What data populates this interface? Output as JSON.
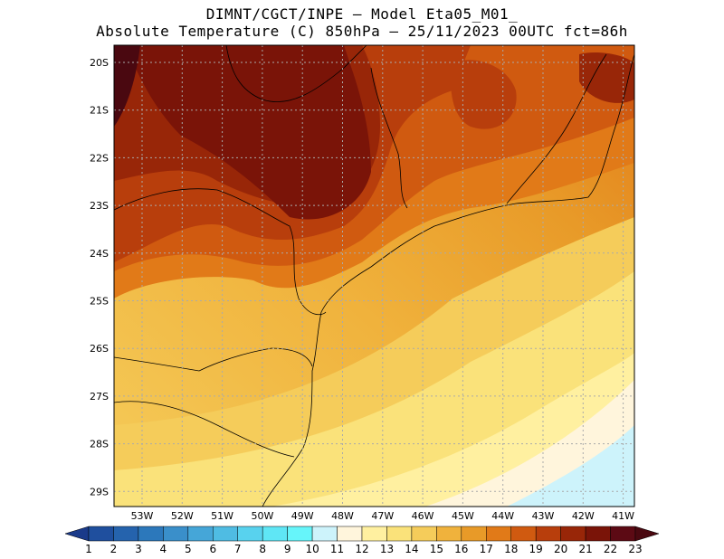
{
  "title_line1": "DIMNT/CGCT/INPE –  Model Eta05_M01_",
  "title_line2": "Absolute Temperature (C) 850hPa –  25/11/2023 00UTC fct=86h",
  "lon_labels": [
    "53W",
    "52W",
    "51W",
    "50W",
    "49W",
    "48W",
    "47W",
    "46W",
    "45W",
    "44W",
    "43W",
    "42W",
    "41W"
  ],
  "lat_labels": [
    "20S",
    "21S",
    "22S",
    "23S",
    "24S",
    "25S",
    "26S",
    "27S",
    "28S",
    "29S"
  ],
  "colorbar": {
    "labels": [
      "1",
      "2",
      "3",
      "4",
      "5",
      "6",
      "7",
      "8",
      "9",
      "10",
      "11",
      "12",
      "13",
      "14",
      "15",
      "16",
      "17",
      "18",
      "19",
      "20",
      "21",
      "22",
      "23"
    ],
    "colors": [
      "#1a3a8a",
      "#1f4f9e",
      "#2563ad",
      "#2c78bb",
      "#3a8fca",
      "#45a6d8",
      "#4fbce3",
      "#58d2ee",
      "#5fe6f5",
      "#66f5fa",
      "#cdf3fb",
      "#fff5dc",
      "#fff0a0",
      "#fae27a",
      "#f5cc5a",
      "#f0b23c",
      "#e89a28",
      "#e17a18",
      "#d05a10",
      "#b83e0c",
      "#982608",
      "#7a1408",
      "#5c0a14",
      "#4a0810"
    ]
  }
}
